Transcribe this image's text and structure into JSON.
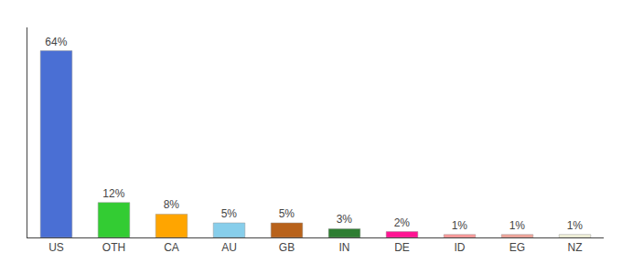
{
  "chart_data": {
    "type": "bar",
    "categories": [
      "US",
      "OTH",
      "CA",
      "AU",
      "GB",
      "IN",
      "DE",
      "ID",
      "EG",
      "NZ"
    ],
    "values": [
      64,
      12,
      8,
      5,
      5,
      3,
      2,
      1,
      1,
      1
    ],
    "value_labels": [
      "64%",
      "12%",
      "8%",
      "5%",
      "5%",
      "3%",
      "2%",
      "1%",
      "1%",
      "1%"
    ],
    "data_labels": true,
    "colors": [
      "#4A6FD4",
      "#33CC33",
      "#FFA500",
      "#87CEEB",
      "#B8621B",
      "#2E7D32",
      "#FF1493",
      "#FF9999",
      "#F4A59A",
      "#F5F5DC"
    ],
    "ylim": [
      0,
      72
    ],
    "grid": false,
    "tick_labels": "x"
  }
}
